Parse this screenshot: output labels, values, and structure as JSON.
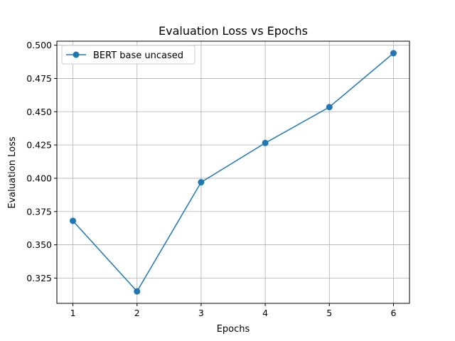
{
  "chart_data": {
    "type": "line",
    "title": "Evaluation Loss vs Epochs",
    "xlabel": "Epochs",
    "ylabel": "Evaluation Loss",
    "x": [
      1,
      2,
      3,
      4,
      5,
      6
    ],
    "series": [
      {
        "name": "BERT base uncased",
        "values": [
          0.368,
          0.315,
          0.397,
          0.4265,
          0.4535,
          0.494
        ],
        "color": "#1f77b4",
        "marker": "circle"
      }
    ],
    "xlim": [
      0.75,
      6.25
    ],
    "ylim": [
      0.306,
      0.503
    ],
    "xticks": [
      1,
      2,
      3,
      4,
      5,
      6
    ],
    "yticks": [
      0.325,
      0.35,
      0.375,
      0.4,
      0.425,
      0.45,
      0.475,
      0.5
    ],
    "ytick_labels": [
      "0.325",
      "0.350",
      "0.375",
      "0.400",
      "0.425",
      "0.450",
      "0.475",
      "0.500"
    ],
    "grid": true,
    "legend_position": "top-left"
  }
}
